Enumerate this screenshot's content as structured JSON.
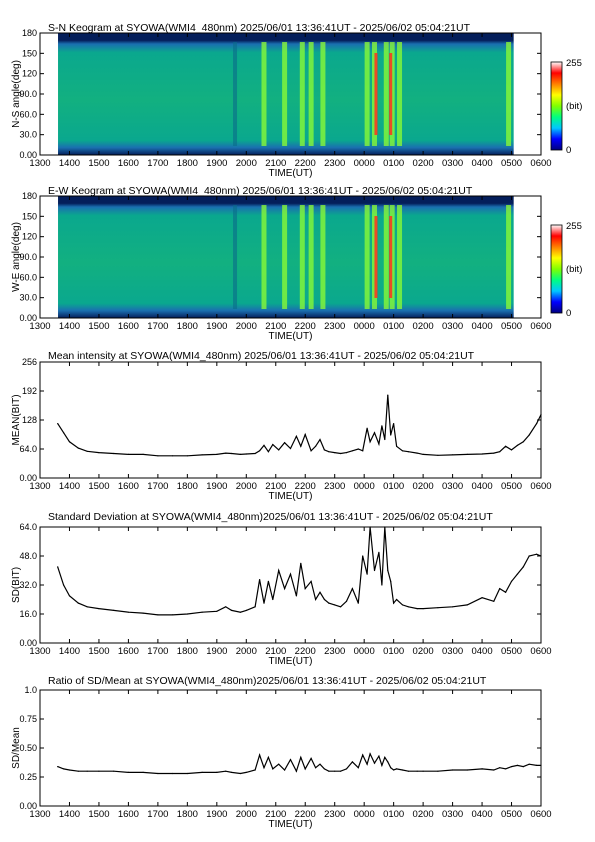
{
  "colors": {
    "frame": "#000000",
    "line": "#000000",
    "colormap": [
      "#000080",
      "#0000ff",
      "#00c8ff",
      "#00ff80",
      "#80ff00",
      "#ffff00",
      "#ff8000",
      "#ff0000",
      "#ffffff"
    ],
    "keogram_background": "#0aa88e",
    "keogram_top_band": "#041e5a"
  },
  "time_axis": {
    "title": "TIME(UT)",
    "ticks": [
      "1300",
      "1400",
      "1500",
      "1600",
      "1700",
      "1800",
      "1900",
      "2000",
      "2100",
      "2200",
      "2300",
      "0000",
      "0100",
      "0200",
      "0300",
      "0400",
      "0500",
      "0600"
    ],
    "range_hours": [
      13,
      30
    ]
  },
  "panels": [
    {
      "id": "sn-keogram",
      "kind": "keogram",
      "title": "S-N Keogram at SYOWA(WMI4_480nm)    2025/06/01 13:36:41UT - 2025/06/02 05:04:21UT",
      "ylabel": "N-S angle(deg)",
      "yticks": [
        "0.00",
        "30.0",
        "60.0",
        "90.0",
        "120",
        "150",
        "180"
      ],
      "colorbar": {
        "max": "255",
        "unit": "(bit)",
        "min": "0"
      }
    },
    {
      "id": "ew-keogram",
      "kind": "keogram",
      "title": "E-W Keogram at SYOWA(WMI4_480nm)    2025/06/01 13:36:41UT - 2025/06/02 05:04:21UT",
      "ylabel": "W-E angle(deg)",
      "yticks": [
        "0.00",
        "30.0",
        "60.0",
        "90.0",
        "120",
        "150",
        "180"
      ],
      "colorbar": {
        "max": "255",
        "unit": "(bit)",
        "min": "0"
      }
    },
    {
      "id": "mean-intensity",
      "kind": "line",
      "title": "Mean intensity at SYOWA(WMI4_480nm)    2025/06/01 13:36:41UT - 2025/06/02 05:04:21UT",
      "ylabel": "MEAN(BIT)",
      "yticks": [
        "0.00",
        "64.0",
        "128",
        "192",
        "256"
      ],
      "ylim": [
        0,
        256
      ]
    },
    {
      "id": "standard-deviation",
      "kind": "line",
      "title": "Standard Deviation at SYOWA(WMI4_480nm)2025/06/01 13:36:41UT - 2025/06/02 05:04:21UT",
      "ylabel": "SD(BIT)",
      "yticks": [
        "0.00",
        "16.0",
        "32.0",
        "48.0",
        "64.0"
      ],
      "ylim": [
        0,
        64
      ]
    },
    {
      "id": "sd-mean-ratio",
      "kind": "line",
      "title": "Ratio of SD/Mean at SYOWA(WMI4_480nm)2025/06/01 13:36:41UT - 2025/06/02 05:04:21UT",
      "ylabel": "SD/Mean",
      "yticks": [
        "0.00",
        "0.25",
        "0.50",
        "0.75",
        "1.0"
      ],
      "ylim": [
        0,
        1
      ]
    }
  ],
  "chart_data": [
    {
      "type": "heatmap",
      "title": "S-N Keogram at SYOWA(WMI4_480nm)    2025/06/01 13:36:41UT - 2025/06/02 05:04:21UT",
      "xlabel": "TIME(UT)",
      "ylabel": "N-S angle(deg)",
      "ylim": [
        0,
        180
      ],
      "colorbar_range": [
        0,
        255
      ],
      "bright_bands_hours": [
        20.6,
        21.3,
        21.9,
        22.2,
        22.6,
        24.1,
        24.35,
        24.75,
        24.95,
        25.2,
        28.9
      ],
      "peak_bands_hours": [
        24.4,
        24.9
      ]
    },
    {
      "type": "heatmap",
      "title": "E-W Keogram at SYOWA(WMI4_480nm)    2025/06/01 13:36:41UT - 2025/06/02 05:04:21UT",
      "xlabel": "TIME(UT)",
      "ylabel": "W-E angle(deg)",
      "ylim": [
        0,
        180
      ],
      "colorbar_range": [
        0,
        255
      ],
      "bright_bands_hours": [
        20.6,
        21.3,
        21.9,
        22.2,
        22.6,
        24.1,
        24.35,
        24.75,
        24.95,
        25.2,
        28.9
      ],
      "peak_bands_hours": [
        24.4,
        24.9
      ]
    },
    {
      "type": "line",
      "title": "Mean intensity at SYOWA(WMI4_480nm)    2025/06/01 13:36:41UT - 2025/06/02 05:04:21UT",
      "xlabel": "TIME(UT)",
      "ylabel": "MEAN(BIT)",
      "ylim": [
        0,
        256
      ],
      "x": [
        13.6,
        13.8,
        14.0,
        14.3,
        14.6,
        15.0,
        15.5,
        16.0,
        16.5,
        17.0,
        17.5,
        18.0,
        18.5,
        19.0,
        19.3,
        19.5,
        19.8,
        20.0,
        20.3,
        20.45,
        20.6,
        20.75,
        20.9,
        21.1,
        21.3,
        21.5,
        21.7,
        21.85,
        22.0,
        22.2,
        22.35,
        22.5,
        22.65,
        22.8,
        23.0,
        23.2,
        23.4,
        23.6,
        23.8,
        23.95,
        24.1,
        24.2,
        24.35,
        24.5,
        24.6,
        24.7,
        24.8,
        24.9,
        25.0,
        25.1,
        25.3,
        25.5,
        25.8,
        26.0,
        26.5,
        27.0,
        27.5,
        28.0,
        28.4,
        28.6,
        28.8,
        29.0,
        29.2,
        29.4,
        29.6,
        29.85,
        30.0
      ],
      "values": [
        120,
        100,
        80,
        66,
        59,
        56,
        54,
        52,
        52,
        49,
        49,
        49,
        51,
        52,
        55,
        54,
        52,
        53,
        54,
        60,
        72,
        58,
        74,
        62,
        78,
        65,
        92,
        70,
        96,
        60,
        70,
        85,
        62,
        58,
        56,
        54,
        56,
        60,
        64,
        60,
        110,
        80,
        100,
        75,
        115,
        85,
        183,
        95,
        120,
        70,
        60,
        58,
        55,
        52,
        50,
        51,
        52,
        53,
        55,
        58,
        70,
        62,
        72,
        80,
        95,
        120,
        140
      ]
    },
    {
      "type": "line",
      "title": "Standard Deviation at SYOWA(WMI4_480nm)2025/06/01 13:36:41UT - 2025/06/02 05:04:21UT",
      "xlabel": "TIME(UT)",
      "ylabel": "SD(BIT)",
      "ylim": [
        0,
        64
      ],
      "x": [
        13.6,
        13.8,
        14.0,
        14.3,
        14.6,
        15.0,
        15.5,
        16.0,
        16.5,
        17.0,
        17.5,
        18.0,
        18.5,
        19.0,
        19.3,
        19.5,
        19.8,
        20.0,
        20.3,
        20.45,
        20.6,
        20.75,
        20.9,
        21.1,
        21.3,
        21.5,
        21.7,
        21.85,
        22.0,
        22.2,
        22.35,
        22.5,
        22.65,
        22.8,
        23.0,
        23.2,
        23.4,
        23.6,
        23.8,
        23.95,
        24.1,
        24.2,
        24.35,
        24.5,
        24.6,
        24.7,
        24.8,
        24.9,
        25.0,
        25.1,
        25.3,
        25.5,
        25.8,
        26.0,
        26.5,
        27.0,
        27.5,
        28.0,
        28.4,
        28.6,
        28.8,
        29.0,
        29.2,
        29.4,
        29.6,
        29.85,
        30.0
      ],
      "values": [
        42,
        32,
        26,
        22,
        20,
        19,
        18,
        17,
        16.5,
        15.5,
        15.5,
        16,
        17,
        17.5,
        20,
        18,
        17,
        18,
        20,
        35,
        22,
        34,
        24,
        40,
        30,
        38,
        26,
        44,
        30,
        34,
        24,
        28,
        24,
        22,
        21,
        20,
        23,
        30,
        22,
        48,
        38,
        66,
        40,
        50,
        32,
        66,
        40,
        34,
        22,
        24,
        21,
        20,
        19,
        19,
        19.5,
        20,
        21,
        25,
        23,
        30,
        28,
        34,
        38,
        42,
        48,
        49,
        48
      ]
    },
    {
      "type": "line",
      "title": "Ratio of SD/Mean at SYOWA(WMI4_480nm)2025/06/01 13:36:41UT - 2025/06/02 05:04:21UT",
      "xlabel": "TIME(UT)",
      "ylabel": "SD/Mean",
      "ylim": [
        0,
        1
      ],
      "x": [
        13.6,
        13.8,
        14.0,
        14.3,
        14.6,
        15.0,
        15.5,
        16.0,
        16.5,
        17.0,
        17.5,
        18.0,
        18.5,
        19.0,
        19.3,
        19.5,
        19.8,
        20.0,
        20.3,
        20.45,
        20.6,
        20.75,
        20.9,
        21.1,
        21.3,
        21.5,
        21.7,
        21.85,
        22.0,
        22.2,
        22.35,
        22.5,
        22.65,
        22.8,
        23.0,
        23.2,
        23.4,
        23.6,
        23.8,
        23.95,
        24.1,
        24.2,
        24.35,
        24.5,
        24.6,
        24.7,
        24.8,
        24.9,
        25.0,
        25.1,
        25.3,
        25.5,
        25.8,
        26.0,
        26.5,
        27.0,
        27.5,
        28.0,
        28.4,
        28.6,
        28.8,
        29.0,
        29.2,
        29.4,
        29.6,
        29.85,
        30.0
      ],
      "values": [
        0.34,
        0.32,
        0.31,
        0.3,
        0.3,
        0.3,
        0.3,
        0.29,
        0.29,
        0.28,
        0.28,
        0.28,
        0.29,
        0.29,
        0.3,
        0.29,
        0.28,
        0.29,
        0.31,
        0.44,
        0.33,
        0.42,
        0.32,
        0.36,
        0.31,
        0.4,
        0.3,
        0.42,
        0.32,
        0.41,
        0.33,
        0.36,
        0.32,
        0.3,
        0.3,
        0.3,
        0.32,
        0.38,
        0.33,
        0.44,
        0.36,
        0.45,
        0.37,
        0.43,
        0.35,
        0.42,
        0.38,
        0.33,
        0.31,
        0.32,
        0.31,
        0.3,
        0.3,
        0.3,
        0.3,
        0.31,
        0.31,
        0.32,
        0.31,
        0.33,
        0.32,
        0.34,
        0.35,
        0.34,
        0.36,
        0.35,
        0.35
      ]
    }
  ]
}
